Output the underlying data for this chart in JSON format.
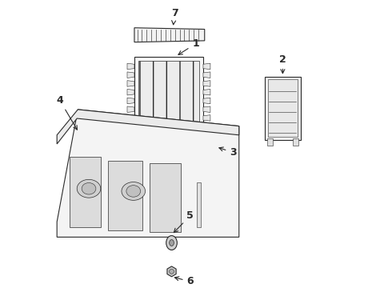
{
  "background_color": "#ffffff",
  "line_color": "#2a2a2a",
  "figsize": [
    4.9,
    3.6
  ],
  "dpi": 100
}
